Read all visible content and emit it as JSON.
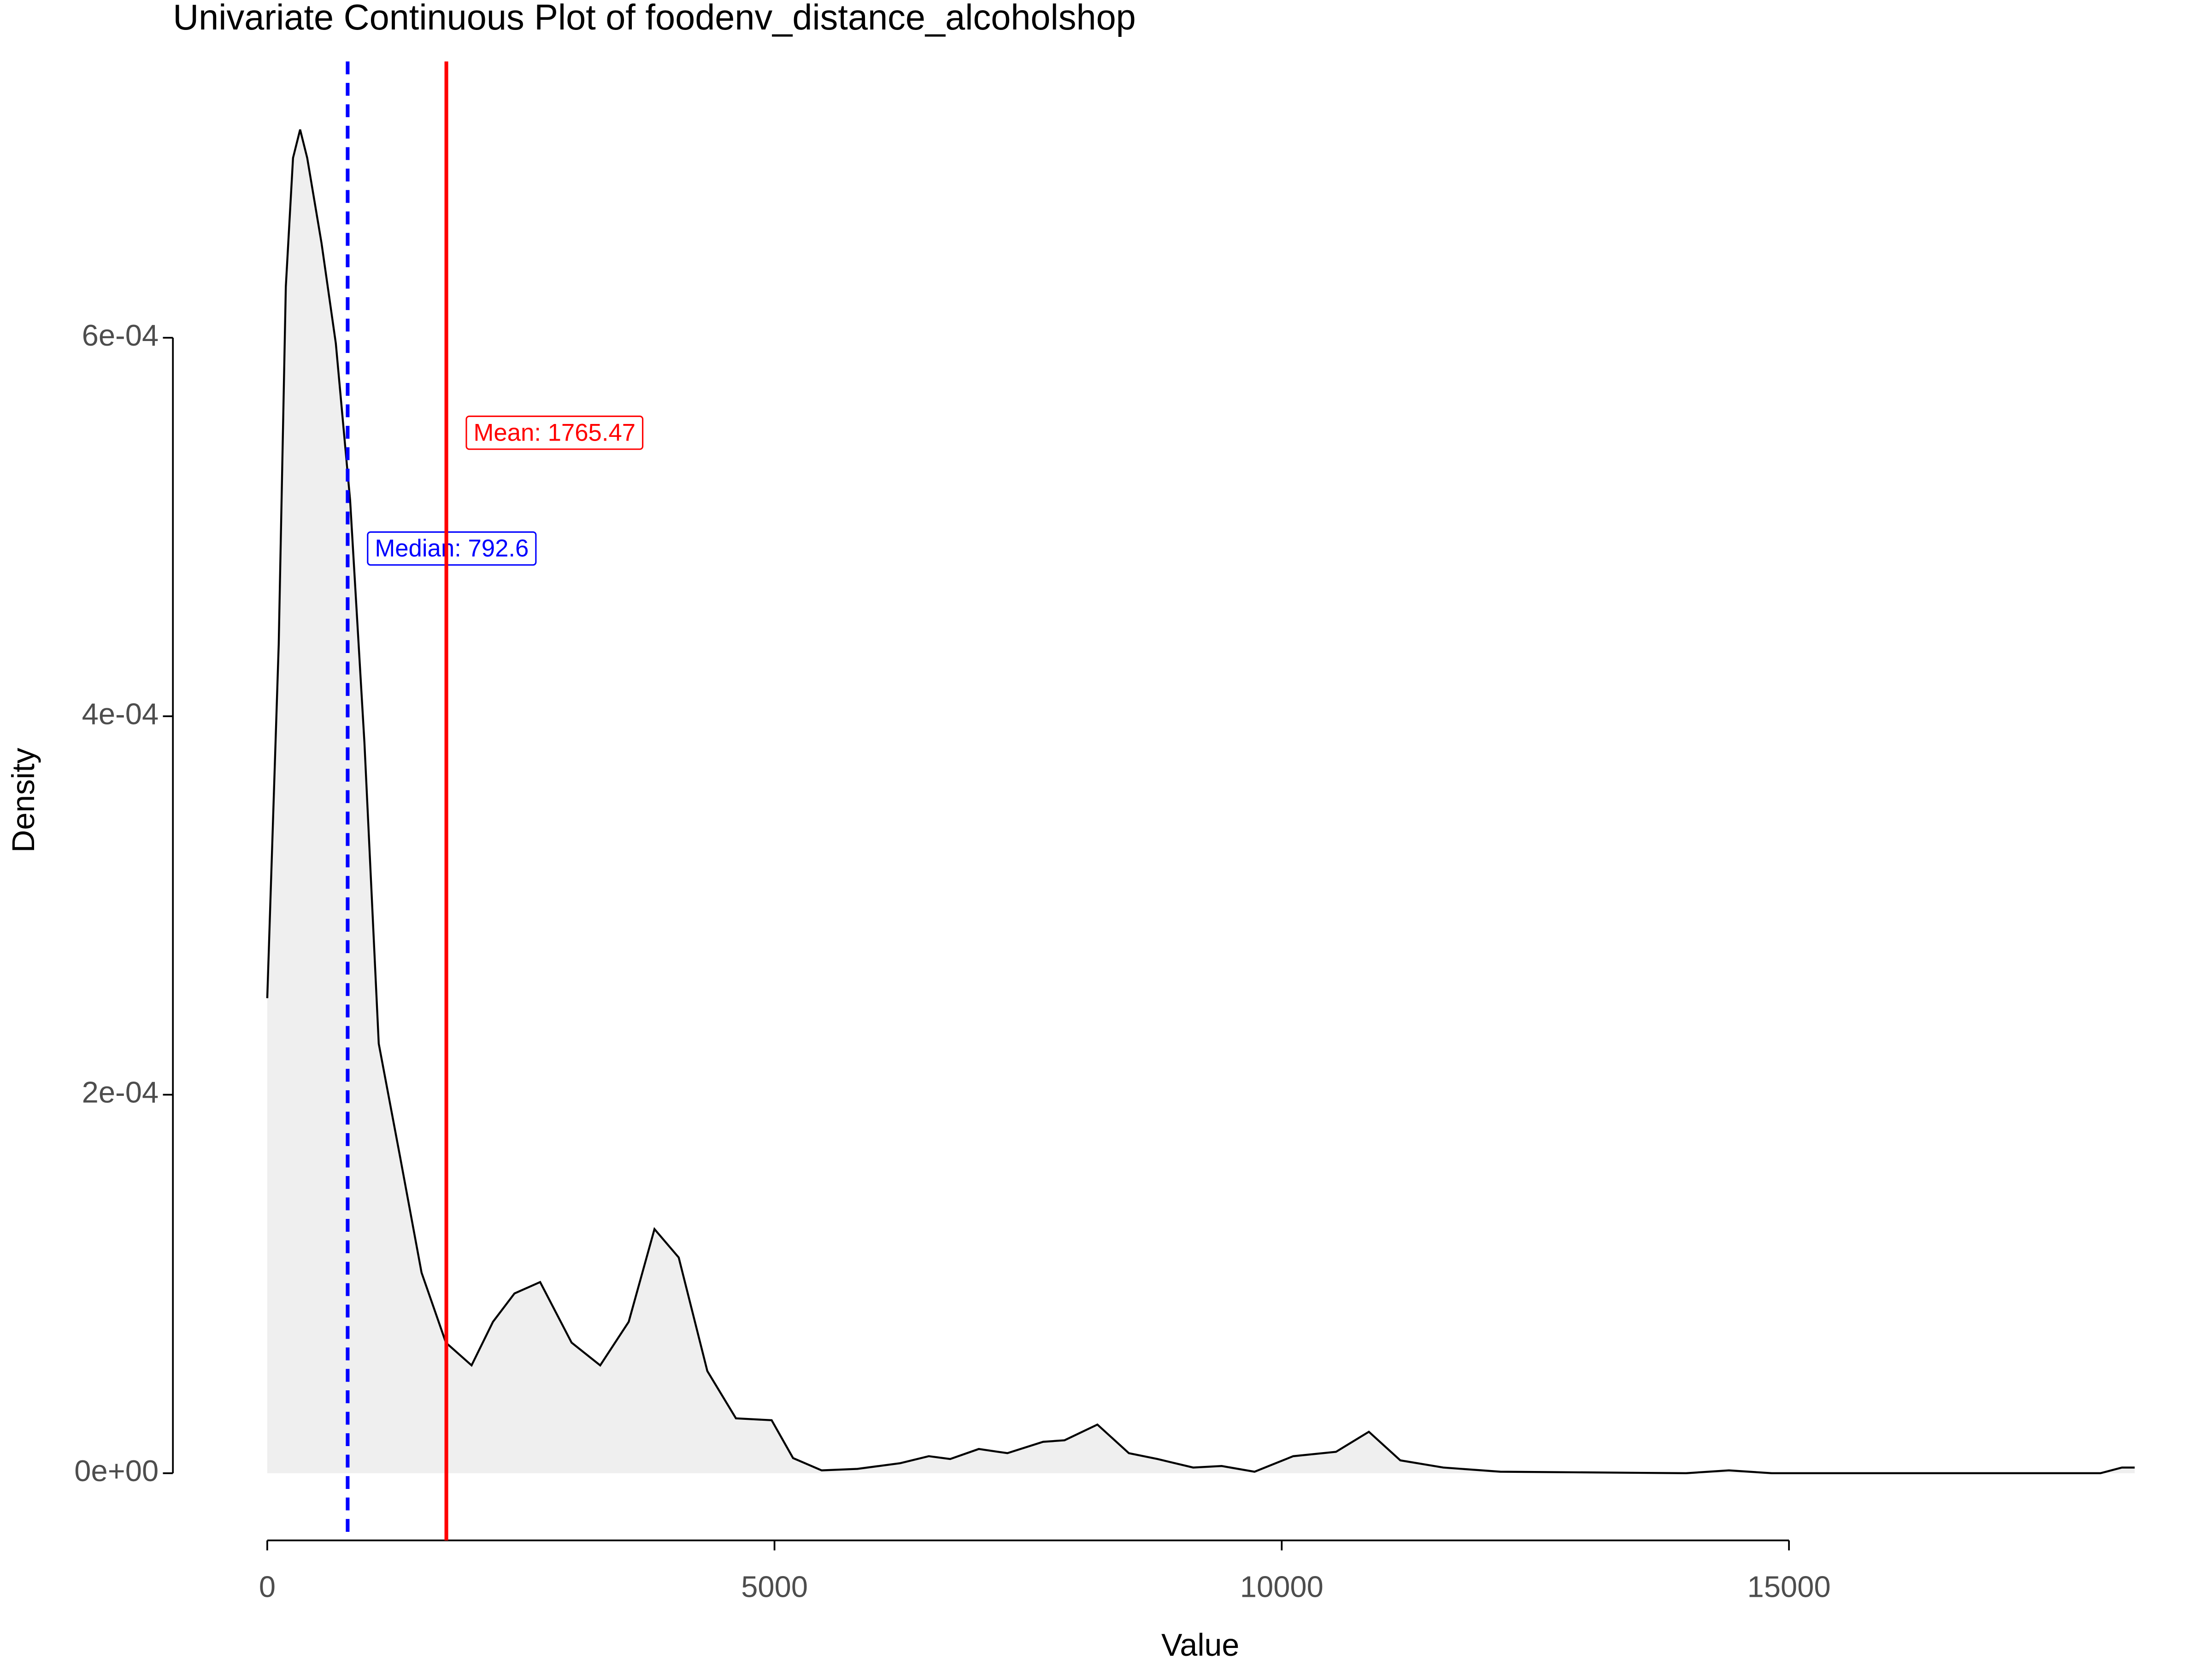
{
  "chart_data": {
    "type": "density",
    "title": "Univariate Continuous Plot of foodenv_distance_alcoholshop",
    "x_label": "Value",
    "y_label": "Density",
    "x": [
      0,
      113,
      183,
      254,
      324,
      394,
      535,
      676,
      817,
      958,
      1099,
      1310,
      1521,
      1761,
      2014,
      2225,
      2437,
      2690,
      3000,
      3282,
      3563,
      3817,
      4056,
      4338,
      4620,
      4972,
      5183,
      5465,
      5817,
      6239,
      6521,
      6732,
      7014,
      7296,
      7648,
      7859,
      8183,
      8493,
      8775,
      9127,
      9408,
      9732,
      10113,
      10535,
      10859,
      11169,
      11592,
      12155,
      13986,
      14408,
      14831,
      18070,
      18282,
      18408
    ],
    "values": [
      0.000251,
      0.000438,
      0.000627,
      0.000695,
      0.00071,
      0.000695,
      0.00065,
      0.000597,
      0.000514,
      0.000386,
      0.000227,
      0.000167,
      0.000106,
      6.9e-05,
      5.7e-05,
      8e-05,
      9.5e-05,
      0.000101,
      6.9e-05,
      5.7e-05,
      8e-05,
      0.000129,
      0.000114,
      5.4e-05,
      2.9e-05,
      2.8e-05,
      8e-06,
      1.5e-06,
      2.3e-06,
      5.3e-06,
      9e-06,
      7.5e-06,
      1.28e-05,
      1.06e-05,
      1.66e-05,
      1.74e-05,
      2.57e-05,
      1.06e-05,
      7.5e-06,
      3e-06,
      3.8e-06,
      8e-07,
      9e-06,
      1.13e-05,
      2.19e-05,
      6.8e-06,
      3e-06,
      8e-07,
      0,
      1.5e-06,
      0,
      0,
      3e-06,
      3e-06
    ],
    "line_color": "#000000",
    "fill_color": "#efefef",
    "xlim": [
      -930,
      19170
    ],
    "xticks": [
      0,
      5000,
      10000,
      15000
    ],
    "ylim": [
      -3.55e-05,
      0.000746
    ],
    "yticks": [
      {
        "value": 0,
        "label": "0e+00"
      },
      {
        "value": 0.0002,
        "label": "2e-04"
      },
      {
        "value": 0.0004,
        "label": "4e-04"
      },
      {
        "value": 0.0006,
        "label": "6e-04"
      }
    ],
    "reference_lines": [
      {
        "label": "Median: 792.6",
        "value": 792.6,
        "color": "#0000ff",
        "dashed": true
      },
      {
        "label": "Mean: 1765.47",
        "value": 1765.47,
        "color": "#ff0000",
        "dashed": false
      }
    ]
  }
}
